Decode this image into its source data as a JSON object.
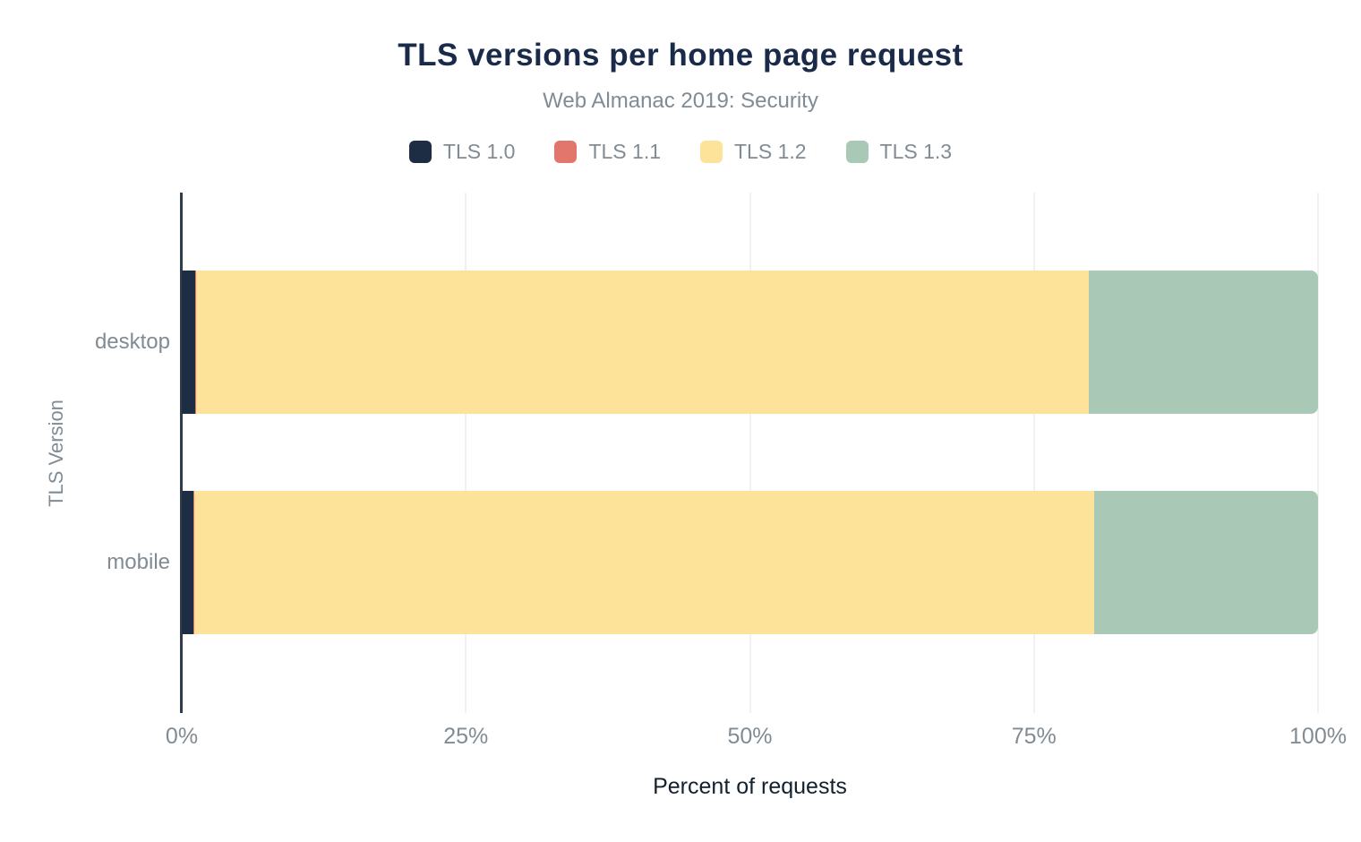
{
  "chart_data": {
    "type": "bar",
    "orientation": "horizontal",
    "stacked": true,
    "title": "TLS versions per home page request",
    "subtitle": "Web Almanac 2019: Security",
    "xlabel": "Percent of requests",
    "ylabel": "TLS Version",
    "xlim": [
      0,
      100
    ],
    "xticks": [
      "0%",
      "25%",
      "50%",
      "75%",
      "100%"
    ],
    "grid": true,
    "legend_position": "top",
    "categories": [
      "desktop",
      "mobile"
    ],
    "series": [
      {
        "name": "TLS 1.0",
        "color": "#1c2d44",
        "values": [
          1.2,
          1.0
        ]
      },
      {
        "name": "TLS 1.1",
        "color": "#e3766c",
        "values": [
          0.1,
          0.1
        ]
      },
      {
        "name": "TLS 1.2",
        "color": "#fde29a",
        "values": [
          78.5,
          79.2
        ]
      },
      {
        "name": "TLS 1.3",
        "color": "#a9c8b5",
        "values": [
          20.2,
          19.7
        ]
      }
    ]
  },
  "colors": {
    "title_text": "#1a2b49",
    "muted_text": "#808b94",
    "xaxis_title_text": "#13202e",
    "axis_line": "#303c49",
    "gridline": "#f0f1f3",
    "background": "#ffffff"
  }
}
